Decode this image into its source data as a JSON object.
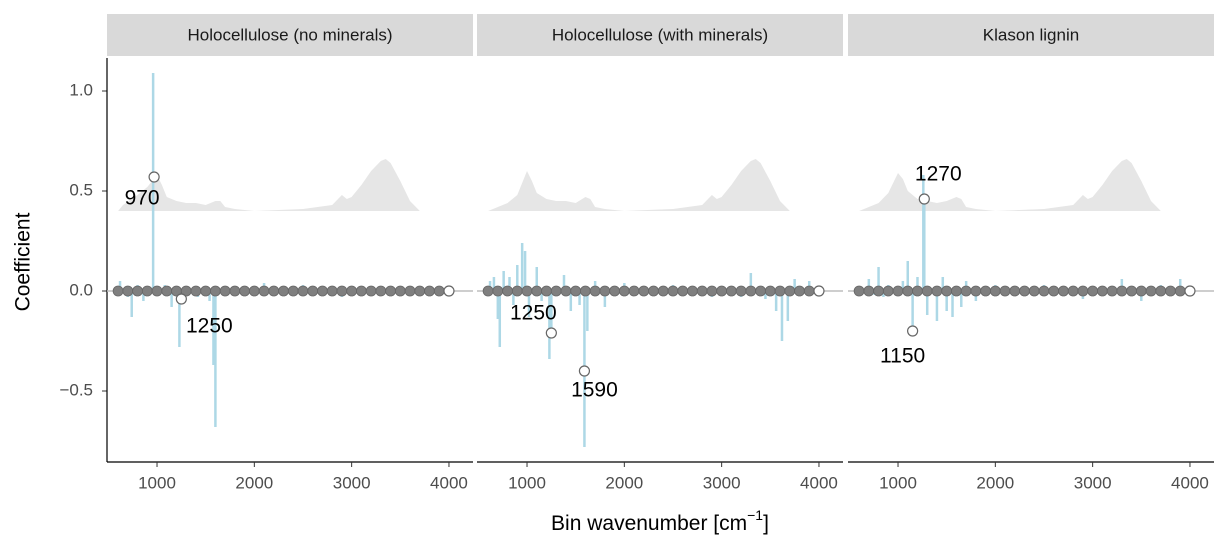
{
  "chart_data": {
    "type": "facet-spike",
    "xlabel": "Bin wavenumber [cm",
    "xlabel_sup": "−1",
    "xlabel_end": "]",
    "ylabel": "Coefficient",
    "xlim": [
      486,
      4247
    ],
    "xticks": [
      1000,
      2000,
      3000,
      4000
    ],
    "ylim": [
      -0.855,
      1.165
    ],
    "yticks": [
      {
        "value": -0.5,
        "label": "−0.5"
      },
      {
        "value": 0,
        "label": "0.0"
      },
      0.5,
      {
        "value": 1,
        "label": "1.0"
      }
    ],
    "panels": [
      {
        "title": "Holocellulose (no minerals)",
        "spectrum": {
          "color": "#e6e6e6",
          "x": [
            600,
            650,
            800,
            900,
            1000,
            1050,
            1100,
            1200,
            1300,
            1400,
            1500,
            1600,
            1650,
            1700,
            1800,
            2000,
            2500,
            2800,
            2900,
            2950,
            3000,
            3100,
            3200,
            3300,
            3350,
            3400,
            3500,
            3600,
            3700
          ],
          "values": [
            0.4,
            0.43,
            0.48,
            0.52,
            0.58,
            0.53,
            0.47,
            0.45,
            0.44,
            0.44,
            0.43,
            0.45,
            0.45,
            0.42,
            0.41,
            0.4,
            0.41,
            0.43,
            0.48,
            0.46,
            0.47,
            0.53,
            0.6,
            0.65,
            0.66,
            0.64,
            0.55,
            0.45,
            0.4
          ]
        },
        "spikes": {
          "color": "#add8e6",
          "x": [
            620,
            700,
            740,
            800,
            860,
            900,
            960,
            1000,
            1080,
            1150,
            1230,
            1250,
            1300,
            1420,
            1540,
            1580,
            1600,
            1700,
            1800,
            2100,
            2500,
            2900,
            3300,
            3600,
            3800
          ],
          "values": [
            0.05,
            -0.03,
            -0.13,
            0.03,
            -0.05,
            0.02,
            1.09,
            -0.02,
            0.03,
            -0.08,
            -0.28,
            -0.04,
            0.02,
            -0.03,
            -0.05,
            -0.37,
            -0.68,
            0.02,
            -0.02,
            0.04,
            0.03,
            -0.03,
            0.02,
            -0.02,
            0.02
          ]
        },
        "points": {
          "color": "#7f7f7f",
          "x": [
            600,
            700,
            800,
            900,
            1000,
            1100,
            1200,
            1300,
            1400,
            1500,
            1600,
            1700,
            1800,
            1900,
            2000,
            2100,
            2200,
            2300,
            2400,
            2500,
            2600,
            2700,
            2800,
            2900,
            3000,
            3100,
            3200,
            3300,
            3400,
            3500,
            3600,
            3700,
            3800,
            3900
          ],
          "values": [
            0,
            0,
            0,
            0,
            0,
            0,
            0,
            0,
            0,
            0,
            0,
            0,
            0,
            0,
            0,
            0,
            0,
            0,
            0,
            0,
            0,
            0,
            0,
            0,
            0,
            0,
            0,
            0,
            0,
            0,
            0,
            0,
            0,
            0
          ]
        },
        "highlights": {
          "x": [
            970,
            1250,
            4000
          ],
          "values": [
            0.57,
            -0.04,
            0
          ],
          "labeled": [
            true,
            true,
            false
          ]
        }
      },
      {
        "title": "Holocellulose (with minerals)",
        "spectrum": {
          "color": "#e6e6e6",
          "x": [
            600,
            650,
            800,
            900,
            1000,
            1050,
            1100,
            1200,
            1300,
            1400,
            1500,
            1600,
            1650,
            1700,
            1800,
            2000,
            2500,
            2800,
            2900,
            2950,
            3000,
            3100,
            3200,
            3300,
            3350,
            3400,
            3500,
            3600,
            3700
          ],
          "values": [
            0.4,
            0.41,
            0.44,
            0.48,
            0.6,
            0.55,
            0.49,
            0.46,
            0.45,
            0.45,
            0.44,
            0.47,
            0.46,
            0.42,
            0.41,
            0.4,
            0.41,
            0.43,
            0.48,
            0.46,
            0.47,
            0.53,
            0.6,
            0.65,
            0.66,
            0.64,
            0.55,
            0.45,
            0.4
          ]
        },
        "spikes": {
          "color": "#add8e6",
          "x": [
            620,
            660,
            700,
            720,
            760,
            820,
            860,
            900,
            950,
            980,
            1020,
            1100,
            1150,
            1230,
            1250,
            1380,
            1450,
            1540,
            1590,
            1620,
            1700,
            1800,
            2000,
            2500,
            2900,
            3200,
            3300,
            3450,
            3560,
            3620,
            3680,
            3750,
            3900
          ],
          "values": [
            0.05,
            0.07,
            -0.14,
            -0.28,
            0.1,
            0.07,
            -0.07,
            0.13,
            0.24,
            0.2,
            -0.13,
            0.12,
            -0.05,
            -0.34,
            -0.21,
            0.08,
            -0.1,
            -0.07,
            -0.78,
            -0.2,
            0.05,
            -0.08,
            0.04,
            0.03,
            -0.03,
            -0.03,
            0.09,
            -0.04,
            -0.1,
            -0.25,
            -0.15,
            0.06,
            0.05
          ]
        },
        "points": {
          "color": "#7f7f7f",
          "x": [
            600,
            700,
            800,
            900,
            1000,
            1100,
            1200,
            1300,
            1400,
            1500,
            1600,
            1700,
            1800,
            1900,
            2000,
            2100,
            2200,
            2300,
            2400,
            2500,
            2600,
            2700,
            2800,
            2900,
            3000,
            3100,
            3200,
            3300,
            3400,
            3500,
            3600,
            3700,
            3800,
            3900
          ],
          "values": [
            0,
            0,
            0,
            0,
            0,
            0,
            0,
            0,
            0,
            0,
            0,
            0,
            0,
            0,
            0,
            0,
            0,
            0,
            0,
            0,
            0,
            0,
            0,
            0,
            0,
            0,
            0,
            0,
            0,
            0,
            0,
            0,
            0,
            0
          ]
        },
        "highlights": {
          "x": [
            1250,
            1590,
            4000
          ],
          "values": [
            -0.21,
            -0.4,
            0
          ],
          "labeled": [
            true,
            true,
            false
          ]
        }
      },
      {
        "title": "Klason lignin",
        "spectrum": {
          "color": "#e6e6e6",
          "x": [
            600,
            650,
            800,
            900,
            1000,
            1050,
            1100,
            1200,
            1300,
            1400,
            1500,
            1600,
            1650,
            1700,
            1800,
            2000,
            2500,
            2800,
            2900,
            2950,
            3000,
            3100,
            3200,
            3300,
            3350,
            3400,
            3500,
            3600,
            3700
          ],
          "values": [
            0.4,
            0.41,
            0.44,
            0.49,
            0.59,
            0.56,
            0.5,
            0.46,
            0.45,
            0.44,
            0.45,
            0.47,
            0.46,
            0.42,
            0.41,
            0.4,
            0.41,
            0.43,
            0.48,
            0.46,
            0.47,
            0.53,
            0.6,
            0.65,
            0.66,
            0.64,
            0.55,
            0.45,
            0.4
          ]
        },
        "spikes": {
          "color": "#add8e6",
          "x": [
            700,
            760,
            800,
            850,
            900,
            1050,
            1100,
            1150,
            1200,
            1260,
            1270,
            1300,
            1400,
            1460,
            1500,
            1560,
            1650,
            1700,
            1800,
            2000,
            2500,
            2900,
            3300,
            3500,
            3700,
            3900
          ],
          "values": [
            0.06,
            -0.02,
            0.12,
            -0.03,
            0.03,
            0.05,
            0.15,
            -0.2,
            0.07,
            0.58,
            0.46,
            -0.12,
            -0.15,
            0.07,
            -0.1,
            -0.13,
            -0.08,
            0.05,
            -0.05,
            0.03,
            0.03,
            -0.04,
            0.06,
            -0.05,
            0.03,
            0.06
          ]
        },
        "points": {
          "color": "#7f7f7f",
          "x": [
            600,
            700,
            800,
            900,
            1000,
            1100,
            1200,
            1300,
            1400,
            1500,
            1600,
            1700,
            1800,
            1900,
            2000,
            2100,
            2200,
            2300,
            2400,
            2500,
            2600,
            2700,
            2800,
            2900,
            3000,
            3100,
            3200,
            3300,
            3400,
            3500,
            3600,
            3700,
            3800,
            3900
          ],
          "values": [
            0,
            0,
            0,
            0,
            0,
            0,
            0,
            0,
            0,
            0,
            0,
            0,
            0,
            0,
            0,
            0,
            0,
            0,
            0,
            0,
            0,
            0,
            0,
            0,
            0,
            0,
            0,
            0,
            0,
            0,
            0,
            0,
            0,
            0
          ]
        },
        "highlights": {
          "x": [
            1150,
            1270,
            4000
          ],
          "values": [
            -0.2,
            0.46,
            0
          ],
          "labeled": [
            true,
            true,
            false
          ]
        }
      }
    ]
  }
}
